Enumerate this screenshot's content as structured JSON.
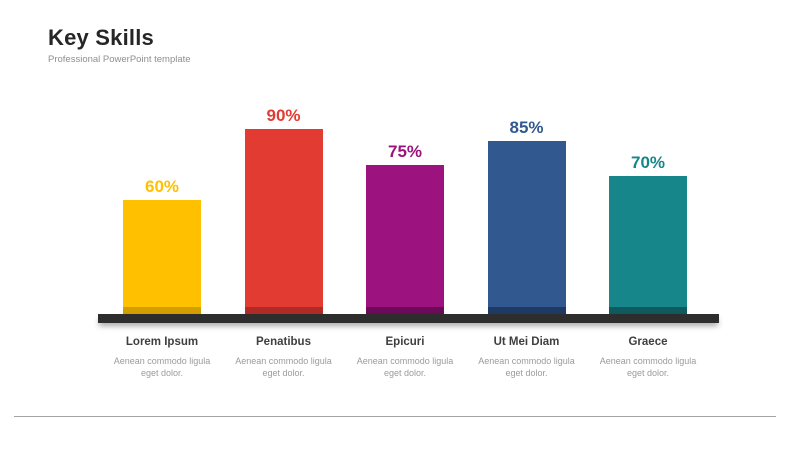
{
  "slide": {
    "title": "Key Skills",
    "subtitle": "Professional PowerPoint template"
  },
  "chart_data": {
    "type": "bar",
    "title": "Key Skills",
    "categories": [
      "Lorem Ipsum",
      "Penatibus",
      "Epicuri",
      "Ut Mei Diam",
      "Graece"
    ],
    "values": [
      60,
      90,
      75,
      85,
      70
    ],
    "value_labels": [
      "60%",
      "90%",
      "75%",
      "85%",
      "70%"
    ],
    "descriptions": [
      "Aenean commodo ligula eget dolor.",
      "Aenean commodo ligula eget dolor.",
      "Aenean commodo ligula eget dolor.",
      "Aenean commodo ligula eget dolor.",
      "Aenean commodo ligula eget dolor."
    ],
    "bar_colors": [
      "#FFC000",
      "#E23B32",
      "#9C1380",
      "#32598F",
      "#17868A"
    ],
    "bar_shade_colors": [
      "#D39E00",
      "#B12B26",
      "#6D0B59",
      "#1E3A63",
      "#0E5A5E"
    ],
    "value_label_colors": [
      "#FFC000",
      "#E23B32",
      "#9C1380",
      "#32598F",
      "#17868A"
    ],
    "xlabel": "",
    "ylabel": "",
    "ylim": [
      0,
      100
    ],
    "grid": false,
    "legend": "none",
    "baseline_color": "#2d2d2d",
    "divider_color": "#a3a3a3"
  }
}
